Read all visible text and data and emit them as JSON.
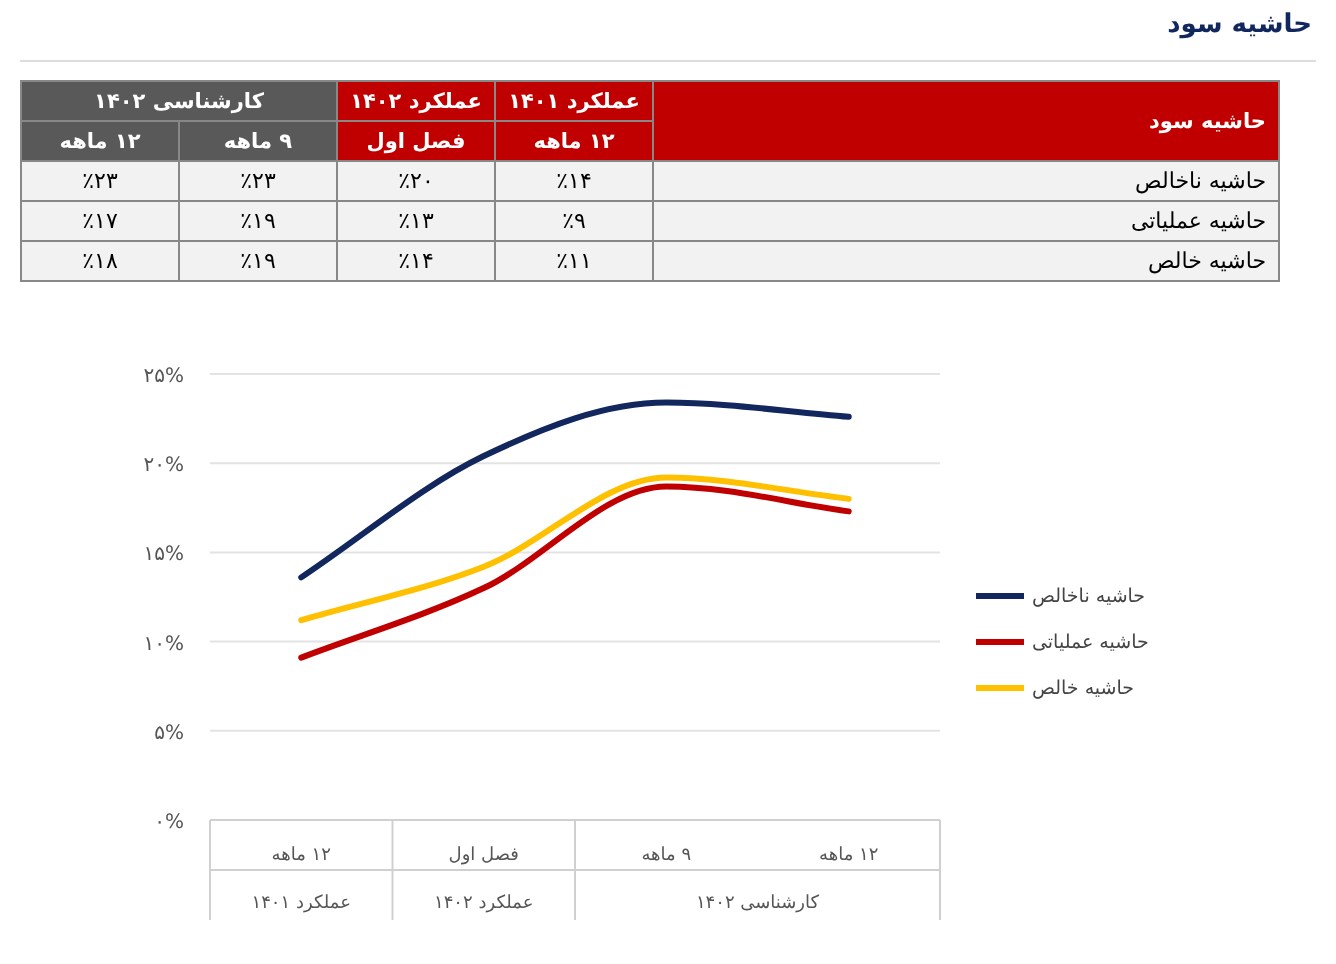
{
  "chart_data": [
    {
      "type": "other",
      "title": "حاشیه سود",
      "categories": [
        "۱۲ ماهه",
        "۹ ماهه",
        "فصل اول",
        "۱۲ ماهه"
      ],
      "annotations": [
        "کارشناسی ۱۴۰۲",
        "عملکرد ۱۴۰۲",
        "عملکرد ۱۴۰۱"
      ],
      "y2_categories": [
        "حاشیه ناخالص",
        "حاشیه عملیاتی",
        "حاشیه خالص"
      ],
      "cell_labels": [
        [
          "٪۲۳",
          "٪۲۳",
          "٪۲۰",
          "٪۱۴"
        ],
        [
          "٪۱۷",
          "٪۱۹",
          "٪۱۳",
          "٪۹"
        ],
        [
          "٪۱۸",
          "٪۱۹",
          "٪۱۴",
          "٪۱۱"
        ]
      ]
    },
    {
      "type": "line",
      "categories": [
        "۱۲ ماهه",
        "فصل اول",
        "۹ ماهه",
        "۱۲ ماهه"
      ],
      "annotations": [
        "عملکرد ۱۴۰۱",
        "عملکرد ۱۴۰۲",
        "کارشناسی ۱۴۰۲"
      ],
      "series": [
        {
          "name": "حاشیه ناخالص",
          "color": "#12275e",
          "values": [
            13.6,
            20.4,
            23.4,
            22.6
          ]
        },
        {
          "name": "حاشیه عملیاتی",
          "color": "#c00000",
          "values": [
            9.1,
            13.0,
            18.7,
            17.3
          ]
        },
        {
          "name": "حاشیه خالص",
          "color": "#ffc000",
          "values": [
            11.2,
            14.2,
            19.2,
            18.0
          ]
        }
      ],
      "ylim": [
        0,
        25
      ],
      "yticks": [
        {
          "value": 0,
          "label": "۰%"
        },
        {
          "value": 5,
          "label": "۵%"
        },
        {
          "value": 10,
          "label": "۱۰%"
        },
        {
          "value": 15,
          "label": "۱۵%"
        },
        {
          "value": 20,
          "label": "۲۰%"
        },
        {
          "value": 25,
          "label": "۲۵%"
        }
      ],
      "grid": "y",
      "legend": "right",
      "marker": "none",
      "line_style": "solid"
    }
  ]
}
